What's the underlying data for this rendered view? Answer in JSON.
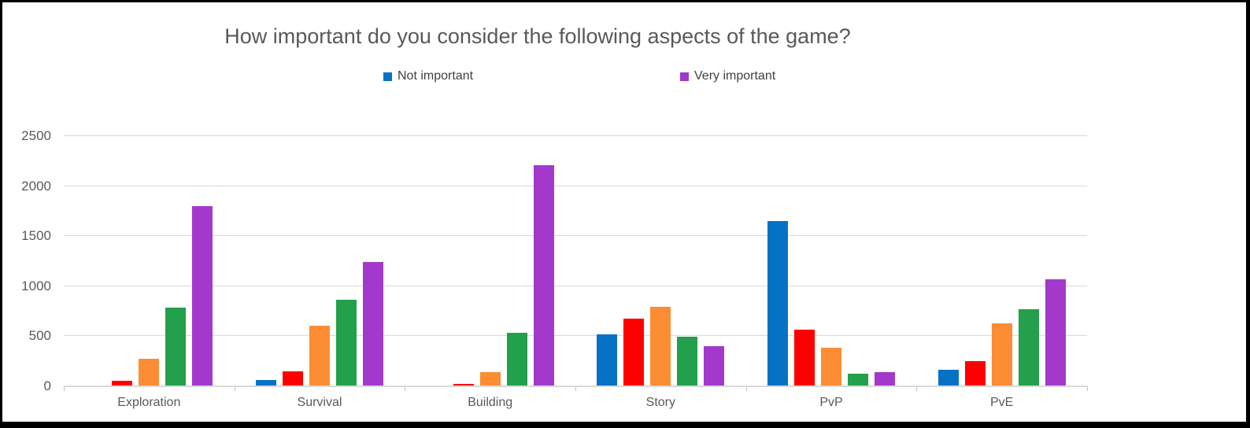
{
  "title": {
    "text": "How important do you consider the following aspects of the game?",
    "color": "#595959"
  },
  "legend": {
    "items": [
      {
        "label": "Not important",
        "color": "#0572C6"
      },
      {
        "label": "Very important",
        "color": "#A239CC"
      }
    ]
  },
  "chart_data": {
    "type": "bar",
    "title": "How important do you consider the following aspects of the game?",
    "categories": [
      "Exploration",
      "Survival",
      "Building",
      "Story",
      "PvP",
      "PvE"
    ],
    "series": [
      {
        "name": "Not important",
        "color": "#0572C6",
        "values": [
          0,
          55,
          0,
          510,
          1645,
          160
        ]
      },
      {
        "name": "",
        "color": "#FF0000",
        "values": [
          50,
          145,
          15,
          670,
          555,
          240
        ]
      },
      {
        "name": "",
        "color": "#FC8D33",
        "values": [
          265,
          595,
          135,
          790,
          380,
          620
        ]
      },
      {
        "name": "",
        "color": "#22A04B",
        "values": [
          775,
          855,
          530,
          490,
          120,
          760
        ]
      },
      {
        "name": "Very important",
        "color": "#A239CC",
        "values": [
          1795,
          1235,
          2200,
          390,
          135,
          1065
        ]
      }
    ],
    "xlabel": "",
    "ylabel": "",
    "y_axis": {
      "min": 0,
      "max": 2500,
      "step": 500,
      "tick_labels": [
        "0",
        "500",
        "1000",
        "1500",
        "2000",
        "2500"
      ]
    },
    "grid": true,
    "legend_position": "top",
    "gridline_color": "#D9D9D9",
    "axis_label_color": "#595959"
  }
}
